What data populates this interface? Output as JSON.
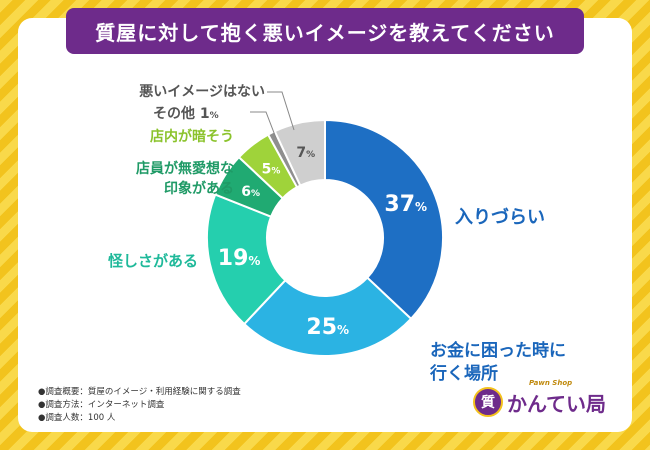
{
  "title": "質屋に対して抱く悪いイメージを教えてください",
  "colors": {
    "purple": "#6e2b8b",
    "dark_blue": "#1e6fc4",
    "light_blue": "#2bb3e3",
    "teal": "#25cfae",
    "green": "#20aa72",
    "lime": "#9fd33a",
    "gray": "#cfcfcf",
    "dark_gray": "#555555"
  },
  "chart_data": {
    "type": "pie",
    "title": "質屋に対して抱く悪いイメージを教えてください",
    "unit": "%",
    "series": [
      {
        "name": "入りづらい",
        "value": 37,
        "color": "#1e6fc4",
        "label_color": "#1a66bb"
      },
      {
        "name": "お金に困った時に行く場所",
        "value": 25,
        "color": "#2bb3e3",
        "label_color": "#1a66bb"
      },
      {
        "name": "怪しさがある",
        "value": 19,
        "color": "#25cfae",
        "label_color": "#1fb99a"
      },
      {
        "name": "店員が無愛想な印象がある",
        "value": 6,
        "color": "#20aa72",
        "label_color": "#1f9a66"
      },
      {
        "name": "店内が暗そう",
        "value": 5,
        "color": "#9fd33a",
        "label_color": "#8bc32c"
      },
      {
        "name": "その他",
        "value": 1,
        "color": "#8f8f8f",
        "label_color": "#555555"
      },
      {
        "name": "悪いイメージはない",
        "value": 7,
        "color": "#cfcfcf",
        "label_color": "#555555"
      }
    ]
  },
  "labels": {
    "iri": "入りづらい",
    "okane_line1": "お金に困った時に",
    "okane_line2": "行く場所",
    "ayashisa": "怪しさがある",
    "tenin_line1": "店員が無愛想な",
    "tenin_line2": "印象がある",
    "kurai": "店内が暗そう",
    "sonota": "その他",
    "warui_nai": "悪いイメージはない"
  },
  "notes": {
    "line1": "●調査概要：質屋のイメージ・利用経験に関する調査",
    "line2": "●調査方法：インターネット調査",
    "line3": "●調査人数：100 人"
  },
  "logo": {
    "mark": "質",
    "name": "かんてい局",
    "sub": "Pawn Shop"
  }
}
